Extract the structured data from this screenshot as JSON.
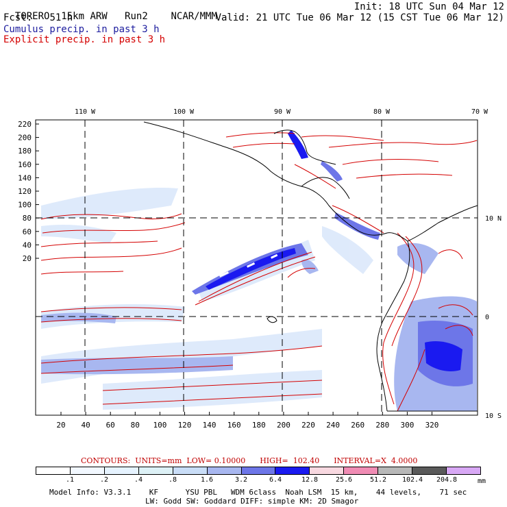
{
  "header": {
    "model": "TORERO",
    "resolution": "15km ARW",
    "run": "Run2",
    "org": "NCAR/MMM",
    "init": "Init: 18 UTC Sun 04 Mar 12",
    "fcst_label": "Fcst:",
    "fcst_value": "51 h",
    "valid": "Valid: 21 UTC Tue 06 Mar 12 (15 CST Tue 06 Mar 12)",
    "legend_cumulus": "Cumulus precip. in past 3 h",
    "legend_explicit": "Explicit precip. in past 3 h",
    "cumulus_color": "#1c1c9e",
    "explicit_color": "#d40000"
  },
  "map": {
    "top_lon_labels": [
      "110 W",
      "100 W",
      "90 W",
      "80 W",
      "70 W"
    ],
    "left_y_labels": [
      "220",
      "200",
      "180",
      "160",
      "140",
      "120",
      "100",
      "80",
      "60",
      "40",
      "20"
    ],
    "bottom_x_labels": [
      "20",
      "40",
      "60",
      "80",
      "100",
      "120",
      "140",
      "160",
      "180",
      "200",
      "220",
      "240",
      "260",
      "280",
      "300",
      "320"
    ],
    "right_lat_labels": [
      "10 N",
      "0",
      "10 S"
    ]
  },
  "contours": {
    "text": "CONTOURS:  UNITS=mm  LOW= 0.10000      HIGH=  102.40      INTERVAL=X  4.0000"
  },
  "colorbar": {
    "labels": [
      ".1",
      ".2",
      ".4",
      ".8",
      "1.6",
      "3.2",
      "6.4",
      "12.8",
      "25.6",
      "51.2",
      "102.4",
      "204.8"
    ],
    "unit": "mm",
    "colors": [
      "#ffffff",
      "#f2f8ff",
      "#e6f3ff",
      "#ddf1f6",
      "#c9ddf7",
      "#a8b7f0",
      "#6d76e8",
      "#1a1af0",
      "#f8d8e0",
      "#f08cb4",
      "#b8b8b8",
      "#5a5a5a",
      "#d8a8f5"
    ]
  },
  "footer": {
    "line1": "Model Info: V3.3.1    KF      YSU PBL   WDM 6class  Noah LSM  15 km,    44 levels,    71 sec",
    "line2": "LW: Godd SW: Goddard DIFF: simple KM: 2D Smagor"
  }
}
